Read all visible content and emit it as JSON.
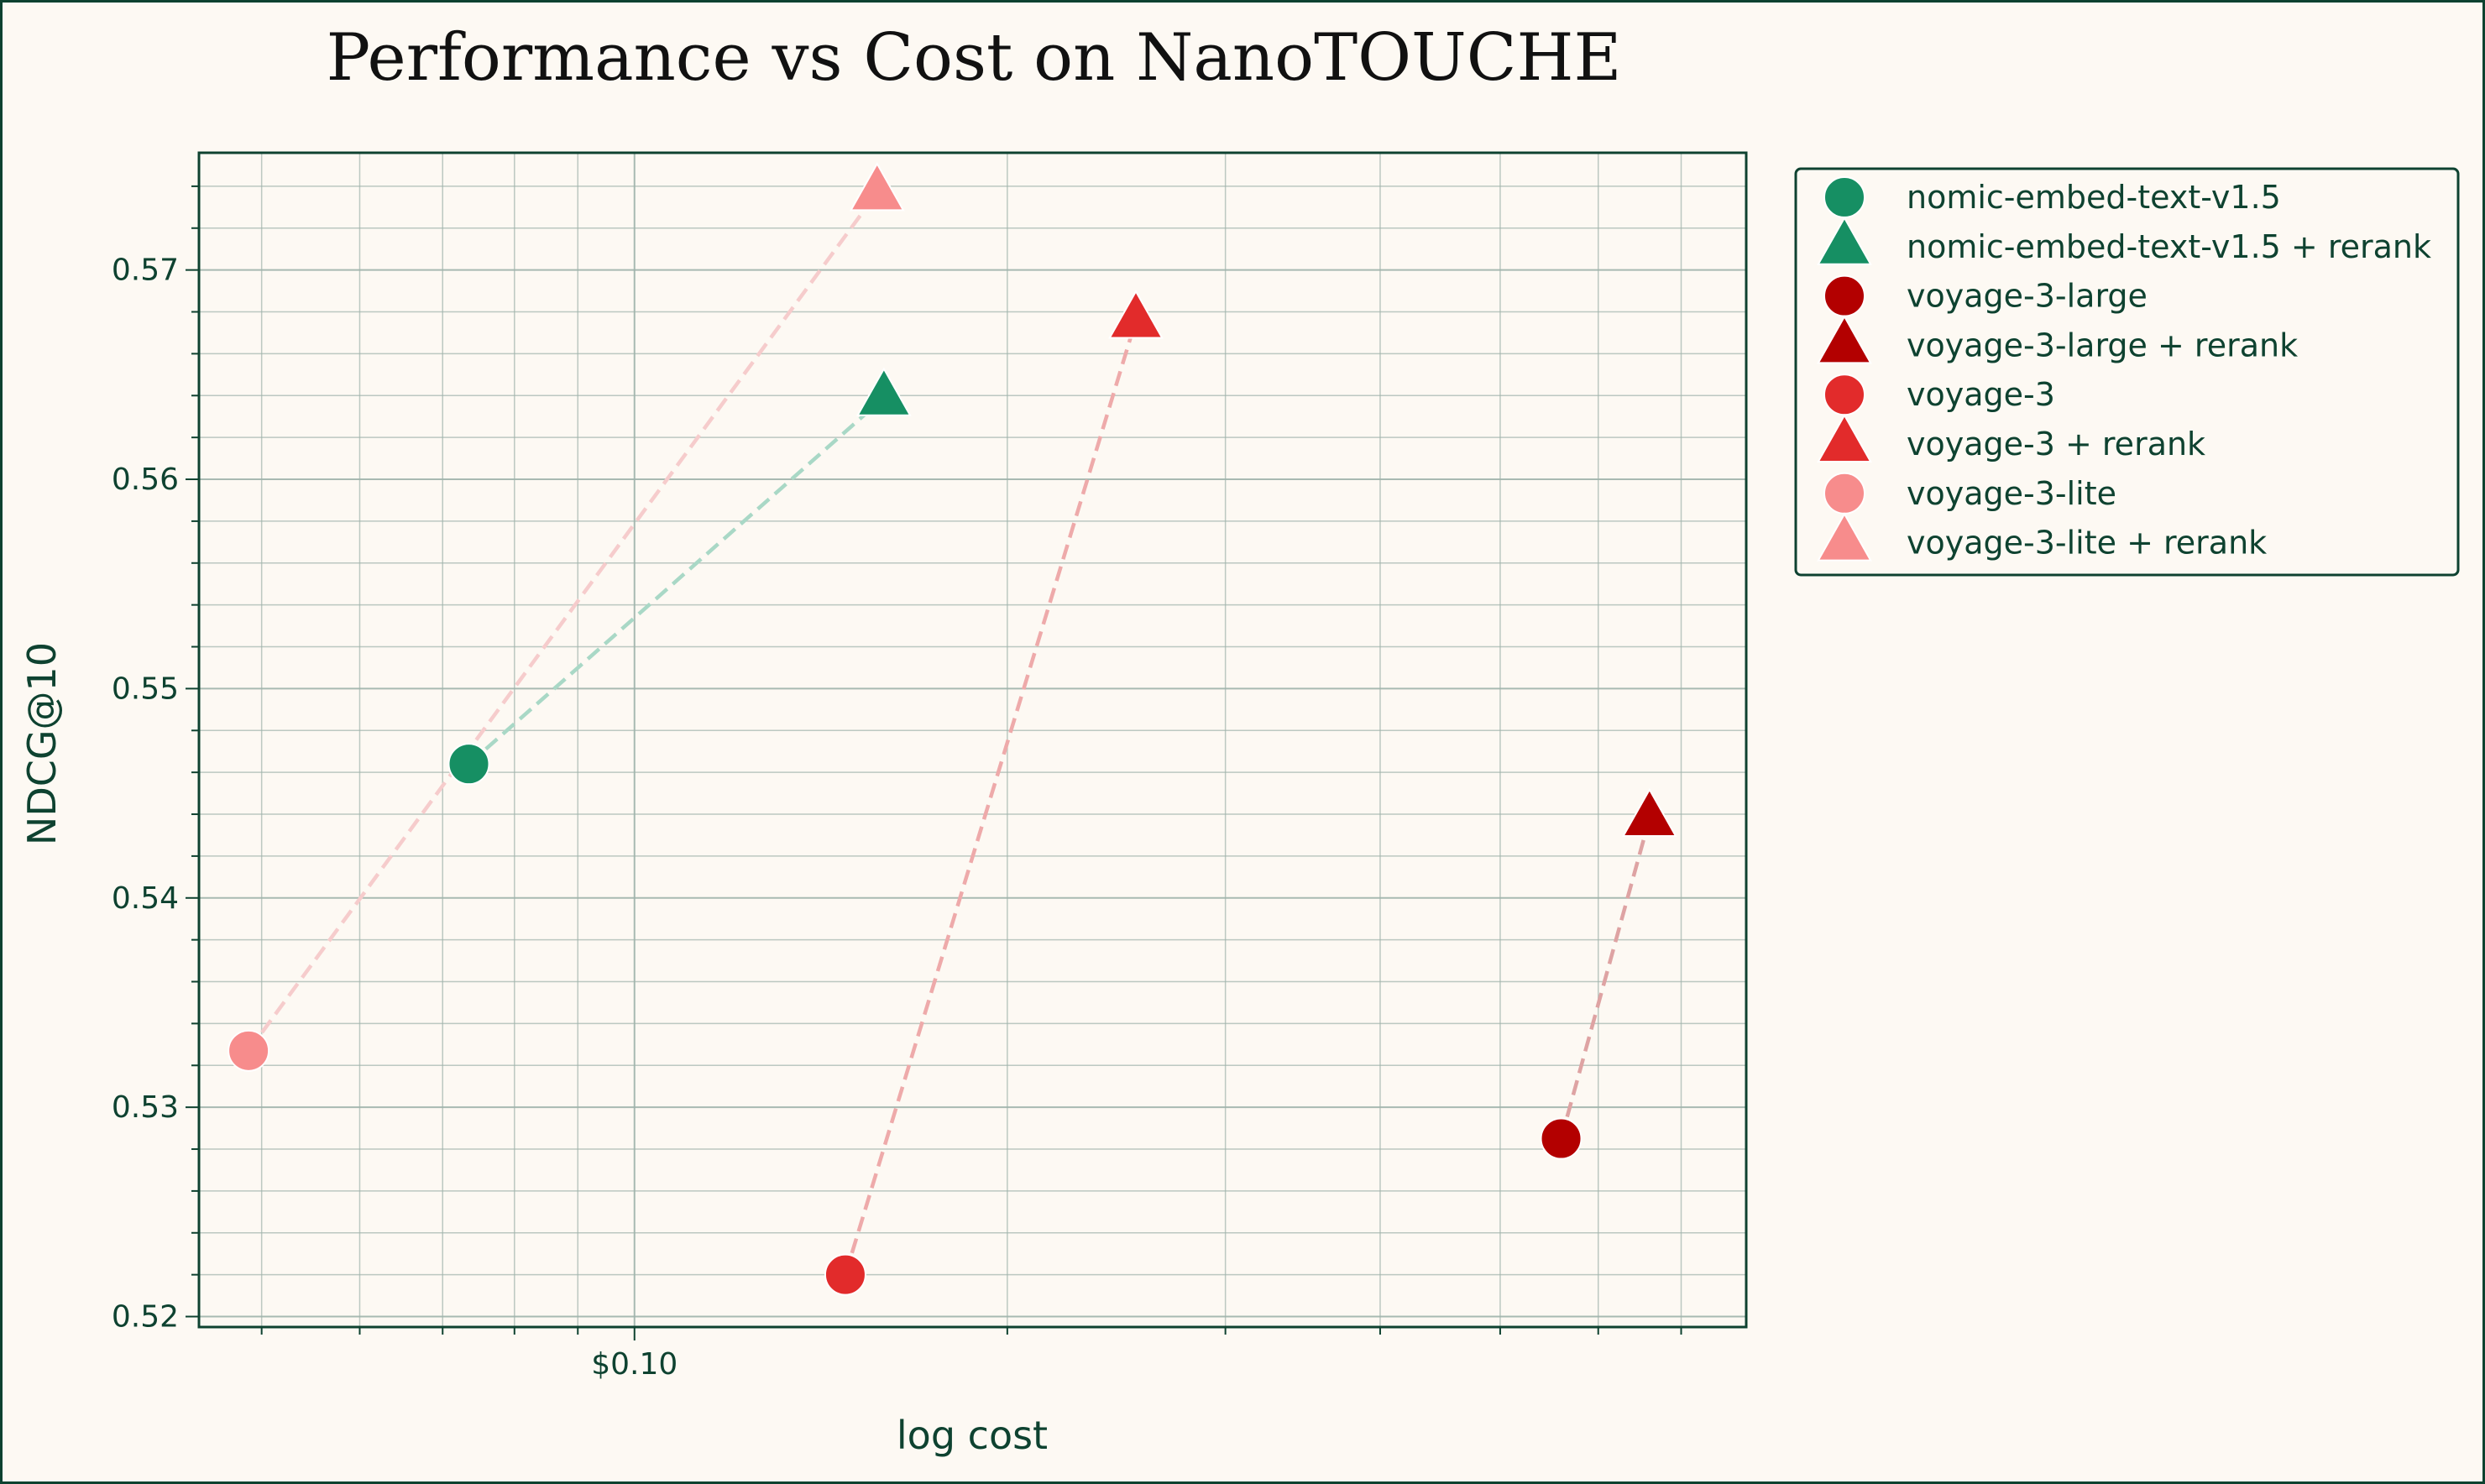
{
  "chart_data": {
    "type": "scatter",
    "title": "Performance vs Cost on NanoTOUCHE",
    "xlabel": "log cost",
    "ylabel": "NDCG@10",
    "x_scale": "log",
    "xlim": [
      0.0445,
      0.79
    ],
    "ylim": [
      0.5195,
      0.5756
    ],
    "x_ticks": [
      {
        "value": 0.1,
        "label": "$0.10"
      }
    ],
    "y_ticks": [
      {
        "value": 0.52,
        "label": "0.52"
      },
      {
        "value": 0.53,
        "label": "0.53"
      },
      {
        "value": 0.54,
        "label": "0.54"
      },
      {
        "value": 0.55,
        "label": "0.55"
      },
      {
        "value": 0.56,
        "label": "0.56"
      },
      {
        "value": 0.57,
        "label": "0.57"
      }
    ],
    "grid": true,
    "legend_position": "outside-right",
    "series": [
      {
        "name": "nomic-embed-text-v1.5",
        "marker": "circle",
        "color": "#168f63",
        "points": [
          {
            "x": 0.0735,
            "y": 0.5464
          }
        ]
      },
      {
        "name": "nomic-embed-text-v1.5 + rerank",
        "marker": "triangle",
        "color": "#168f63",
        "points": [
          {
            "x": 0.159,
            "y": 0.5639
          }
        ]
      },
      {
        "name": "voyage-3-large",
        "marker": "circle",
        "color": "#b30000",
        "points": [
          {
            "x": 0.56,
            "y": 0.5285
          }
        ]
      },
      {
        "name": "voyage-3-large + rerank",
        "marker": "triangle",
        "color": "#b30000",
        "points": [
          {
            "x": 0.66,
            "y": 0.5438
          }
        ]
      },
      {
        "name": "voyage-3",
        "marker": "circle",
        "color": "#e22b2b",
        "points": [
          {
            "x": 0.148,
            "y": 0.522
          }
        ]
      },
      {
        "name": "voyage-3 + rerank",
        "marker": "triangle",
        "color": "#e22b2b",
        "points": [
          {
            "x": 0.254,
            "y": 0.5676
          }
        ]
      },
      {
        "name": "voyage-3-lite",
        "marker": "circle",
        "color": "#f78c8c",
        "points": [
          {
            "x": 0.0488,
            "y": 0.5327
          }
        ]
      },
      {
        "name": "voyage-3-lite + rerank",
        "marker": "triangle",
        "color": "#f78c8c",
        "points": [
          {
            "x": 0.157,
            "y": 0.5737
          }
        ]
      }
    ],
    "connectors": [
      {
        "from": "nomic-embed-text-v1.5",
        "to": "nomic-embed-text-v1.5 + rerank",
        "color": "#a9d8c6"
      },
      {
        "from": "voyage-3-large",
        "to": "voyage-3-large + rerank",
        "color": "#dea3a3"
      },
      {
        "from": "voyage-3",
        "to": "voyage-3 + rerank",
        "color": "#eeaaaa"
      },
      {
        "from": "voyage-3-lite",
        "to": "voyage-3-lite + rerank",
        "color": "#f6cccc"
      }
    ],
    "colors": {
      "background": "#fdf9f3",
      "frame": "#0e4230",
      "grid": "#9fb3ab"
    }
  }
}
